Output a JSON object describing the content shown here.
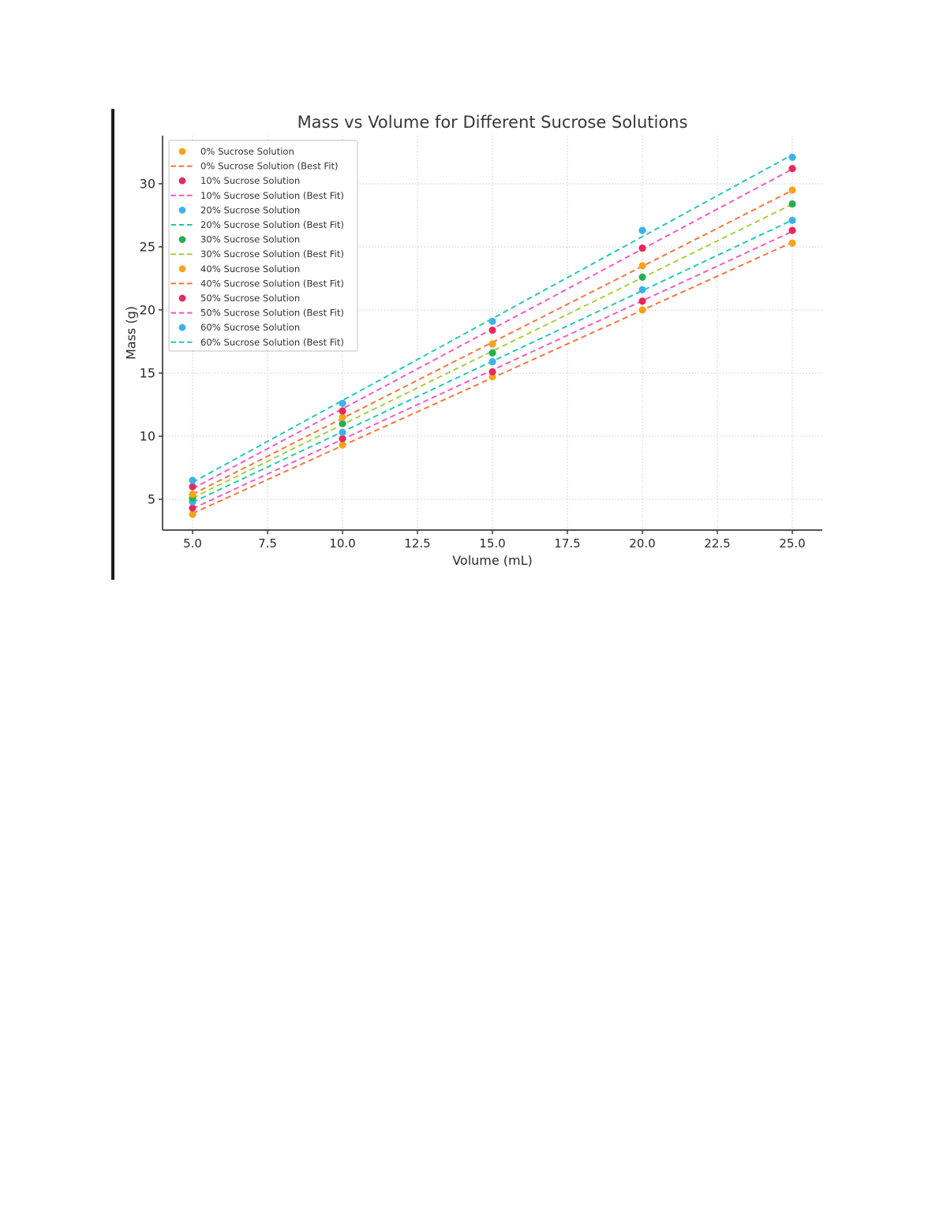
{
  "page": {
    "background_color": "#ffffff",
    "left_rule_color": "#1c1c1c"
  },
  "chart_data": {
    "type": "scatter",
    "title": "Mass vs Volume for Different Sucrose Solutions",
    "xlabel": "Volume (mL)",
    "ylabel": "Mass (g)",
    "x": [
      5,
      10,
      15,
      20,
      25
    ],
    "xlim": [
      4,
      26
    ],
    "ylim": [
      2.56,
      33.81
    ],
    "xtick_labels": [
      "5.0",
      "7.5",
      "10.0",
      "12.5",
      "15.0",
      "17.5",
      "20.0",
      "22.5",
      "25.0"
    ],
    "xtick_values": [
      5,
      7.5,
      10,
      12.5,
      15,
      17.5,
      20,
      22.5,
      25
    ],
    "ytick_labels": [
      "5",
      "10",
      "15",
      "20",
      "25",
      "30"
    ],
    "ytick_values": [
      5,
      10,
      15,
      20,
      25,
      30
    ],
    "grid": true,
    "grid_color": "#cbcbcb",
    "legend_position": "upper left",
    "axis_color": "#3b3b3b",
    "text_color": "#2b2b2b",
    "series": [
      {
        "label": "0% Sucrose Solution",
        "fit_label": "0% Sucrose Solution (Best Fit)",
        "marker_color": "#f9a31b",
        "fit_color": "#f8713a",
        "values": [
          3.8,
          9.3,
          14.7,
          20.0,
          25.3
        ]
      },
      {
        "label": "10% Sucrose Solution",
        "fit_label": "10% Sucrose Solution (Best Fit)",
        "marker_color": "#e62a5b",
        "fit_color": "#f155cb",
        "values": [
          4.3,
          9.8,
          15.1,
          20.7,
          26.3
        ]
      },
      {
        "label": "20% Sucrose Solution",
        "fit_label": "20% Sucrose Solution (Best Fit)",
        "marker_color": "#3db2e9",
        "fit_color": "#21c5b7",
        "values": [
          4.8,
          10.3,
          15.9,
          21.6,
          27.1
        ]
      },
      {
        "label": "30% Sucrose Solution",
        "fit_label": "30% Sucrose Solution (Best Fit)",
        "marker_color": "#28ae52",
        "fit_color": "#a4cd3a",
        "values": [
          5.1,
          11.0,
          16.6,
          22.6,
          28.4
        ]
      },
      {
        "label": "40% Sucrose Solution",
        "fit_label": "40% Sucrose Solution (Best Fit)",
        "marker_color": "#f9a31b",
        "fit_color": "#f8713a",
        "values": [
          5.4,
          11.5,
          17.3,
          23.5,
          29.5
        ]
      },
      {
        "label": "50% Sucrose Solution",
        "fit_label": "50% Sucrose Solution (Best Fit)",
        "marker_color": "#e62a5b",
        "fit_color": "#f155cb",
        "values": [
          6.0,
          12.0,
          18.4,
          24.9,
          31.2
        ]
      },
      {
        "label": "60% Sucrose Solution",
        "fit_label": "60% Sucrose Solution (Best Fit)",
        "marker_color": "#3db2e9",
        "fit_color": "#21c5b7",
        "values": [
          6.5,
          12.6,
          19.1,
          26.3,
          32.1
        ]
      }
    ]
  }
}
